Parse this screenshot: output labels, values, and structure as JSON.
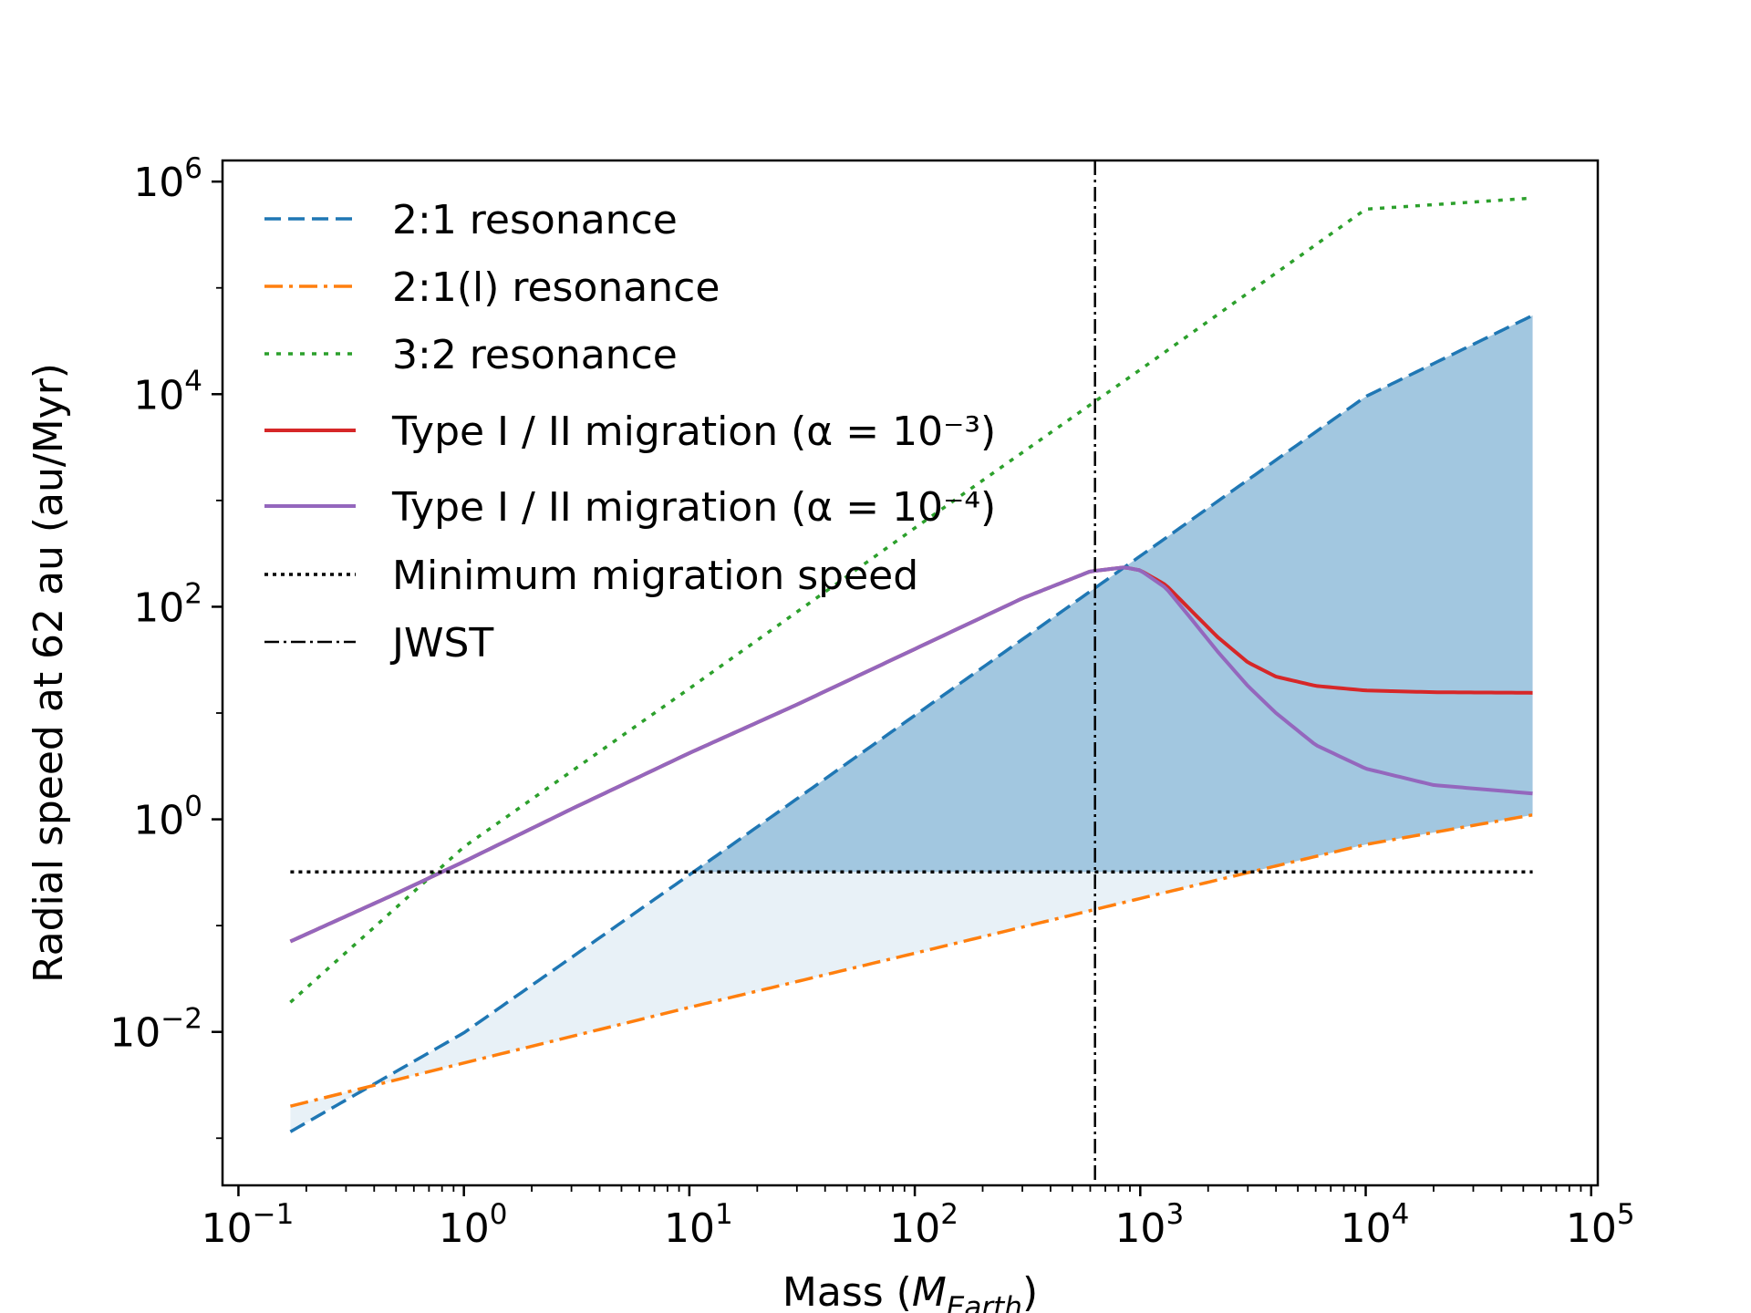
{
  "chart_data": {
    "type": "line",
    "xlabel": "Mass (M_Earth)",
    "xlabel_main": "Mass (",
    "xlabel_sym": "M",
    "xlabel_sub": "Earth",
    "xlabel_end": ")",
    "ylabel": "Radial speed at 62 au (au/Myr)",
    "xscale": "log",
    "yscale": "log",
    "xlim": [
      0.085,
      107000
    ],
    "ylim": [
      0.00036,
      1580000
    ],
    "x_ticks": [
      {
        "value": 0.1,
        "base": "10",
        "exp": "−1"
      },
      {
        "value": 1,
        "base": "10",
        "exp": "0"
      },
      {
        "value": 10,
        "base": "10",
        "exp": "1"
      },
      {
        "value": 100,
        "base": "10",
        "exp": "2"
      },
      {
        "value": 1000,
        "base": "10",
        "exp": "3"
      },
      {
        "value": 10000,
        "base": "10",
        "exp": "4"
      },
      {
        "value": 100000,
        "base": "10",
        "exp": "5"
      }
    ],
    "y_ticks": [
      {
        "value": 0.01,
        "base": "10",
        "exp": "−2"
      },
      {
        "value": 1,
        "base": "10",
        "exp": "0"
      },
      {
        "value": 100,
        "base": "10",
        "exp": "2"
      },
      {
        "value": 10000,
        "base": "10",
        "exp": "4"
      },
      {
        "value": 1000000,
        "base": "10",
        "exp": "6"
      }
    ],
    "grid": false,
    "legend_position": "top-left",
    "x_range": [
      0.17,
      55000
    ],
    "series": [
      {
        "name": "2:1 resonance",
        "style": "dashed",
        "color": "#1f77b4",
        "x": [
          0.17,
          1,
          10,
          100,
          1000,
          10000,
          55000
        ],
        "y": [
          0.00115,
          0.0098,
          0.3,
          9.5,
          300,
          9500,
          55000
        ]
      },
      {
        "name": "2:1(l) resonance",
        "style": "dashdot",
        "color": "#ff7f0e",
        "x": [
          0.17,
          1,
          10,
          100,
          1000,
          10000,
          55000
        ],
        "y": [
          0.002,
          0.0051,
          0.017,
          0.055,
          0.18,
          0.58,
          1.1
        ]
      },
      {
        "name": "3:2 resonance",
        "style": "dotted",
        "color": "#2ca02c",
        "x": [
          0.17,
          1,
          10,
          100,
          1000,
          10000,
          55000
        ],
        "y": [
          0.019,
          0.55,
          17,
          550,
          17000,
          550000,
          700000
        ]
      },
      {
        "name": "Type I / II migration (α = 10⁻³)",
        "style": "solid",
        "color": "#d62728",
        "x": [
          0.17,
          0.5,
          1,
          3,
          10,
          30,
          100,
          300,
          600,
          850,
          1000,
          1300,
          1700,
          2200,
          3000,
          4000,
          6000,
          10000,
          20000,
          55000
        ],
        "y": [
          0.071,
          0.2,
          0.4,
          1.25,
          4.2,
          12,
          40,
          120,
          215,
          235,
          220,
          160,
          90,
          52,
          30,
          22,
          18,
          16.3,
          15.7,
          15.5
        ]
      },
      {
        "name": "Type I / II migration (α = 10⁻⁴)",
        "style": "solid",
        "color": "#9467bd",
        "x": [
          0.17,
          0.5,
          1,
          3,
          10,
          30,
          100,
          300,
          600,
          850,
          1000,
          1300,
          1700,
          2200,
          3000,
          4000,
          6000,
          10000,
          20000,
          55000
        ],
        "y": [
          0.071,
          0.2,
          0.4,
          1.25,
          4.2,
          12,
          40,
          120,
          215,
          235,
          220,
          150,
          75,
          38,
          18,
          10,
          5,
          3,
          2.1,
          1.75
        ]
      },
      {
        "name": "Minimum migration speed",
        "style": "dotted",
        "color": "#000000",
        "x": [
          0.17,
          55000
        ],
        "y": [
          0.32,
          0.32
        ]
      },
      {
        "name": "JWST",
        "style": "dashdot",
        "color": "#000000",
        "vline_x": 630
      }
    ],
    "shaded_regions": [
      {
        "description_series": [
          "2:1 resonance",
          "2:1(l) resonance"
        ],
        "color": "#1f77b4",
        "alpha_light": 0.1,
        "alpha_dark": 0.35,
        "threshold_y": 0.32
      }
    ]
  }
}
